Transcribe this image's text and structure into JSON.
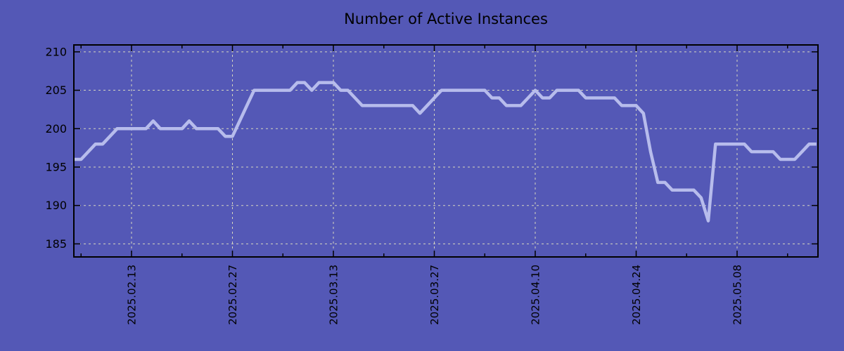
{
  "chart_data": {
    "type": "line",
    "title": "Number of Active Instances",
    "xlabel": "",
    "ylabel": "",
    "grid": true,
    "legend_position": "none",
    "ylim": [
      183.3,
      210.9
    ],
    "y_ticks": [
      185,
      190,
      195,
      200,
      205,
      210
    ],
    "x_tick_labels": [
      "2025.02.13",
      "2025.02.27",
      "2025.03.13",
      "2025.03.27",
      "2025.04.10",
      "2025.04.24",
      "2025.05.08"
    ],
    "x_minor_ticks": [
      "2025.02.06",
      "2025.02.20",
      "2025.03.06",
      "2025.03.20",
      "2025.04.03",
      "2025.04.17",
      "2025.05.01",
      "2025.05.15"
    ],
    "colors": {
      "background": "#5458b6",
      "line": "#b7bcec",
      "grid": "#d6d6c0",
      "axis": "#000000",
      "text": "#000000"
    },
    "x": [
      "2025.02.05",
      "2025.02.06",
      "2025.02.07",
      "2025.02.08",
      "2025.02.09",
      "2025.02.10",
      "2025.02.11",
      "2025.02.12",
      "2025.02.13",
      "2025.02.14",
      "2025.02.15",
      "2025.02.16",
      "2025.02.17",
      "2025.02.18",
      "2025.02.19",
      "2025.02.20",
      "2025.02.21",
      "2025.02.22",
      "2025.02.23",
      "2025.02.24",
      "2025.02.25",
      "2025.02.26",
      "2025.02.27",
      "2025.02.28",
      "2025.03.01",
      "2025.03.02",
      "2025.03.03",
      "2025.03.04",
      "2025.03.05",
      "2025.03.06",
      "2025.03.07",
      "2025.03.08",
      "2025.03.09",
      "2025.03.10",
      "2025.03.11",
      "2025.03.12",
      "2025.03.13",
      "2025.03.14",
      "2025.03.15",
      "2025.03.16",
      "2025.03.17",
      "2025.03.18",
      "2025.03.19",
      "2025.03.20",
      "2025.03.21",
      "2025.03.22",
      "2025.03.23",
      "2025.03.24",
      "2025.03.25",
      "2025.03.26",
      "2025.03.27",
      "2025.03.28",
      "2025.03.29",
      "2025.03.30",
      "2025.03.31",
      "2025.04.01",
      "2025.04.02",
      "2025.04.03",
      "2025.04.04",
      "2025.04.05",
      "2025.04.06",
      "2025.04.07",
      "2025.04.08",
      "2025.04.09",
      "2025.04.10",
      "2025.04.11",
      "2025.04.12",
      "2025.04.13",
      "2025.04.14",
      "2025.04.15",
      "2025.04.16",
      "2025.04.17",
      "2025.04.18",
      "2025.04.19",
      "2025.04.20",
      "2025.04.21",
      "2025.04.22",
      "2025.04.23",
      "2025.04.24",
      "2025.04.25",
      "2025.04.26",
      "2025.04.27",
      "2025.04.28",
      "2025.04.29",
      "2025.04.30",
      "2025.05.01",
      "2025.05.02",
      "2025.05.03",
      "2025.05.04",
      "2025.05.05",
      "2025.05.06",
      "2025.05.07",
      "2025.05.08",
      "2025.05.09",
      "2025.05.10",
      "2025.05.11",
      "2025.05.12",
      "2025.05.13",
      "2025.05.14",
      "2025.05.15",
      "2025.05.16",
      "2025.05.17",
      "2025.05.18",
      "2025.05.19"
    ],
    "values": [
      196,
      196,
      197,
      198,
      198,
      199,
      200,
      200,
      200,
      200,
      200,
      201,
      200,
      200,
      200,
      200,
      201,
      200,
      200,
      200,
      200,
      199,
      199,
      201,
      203,
      205,
      205,
      205,
      205,
      205,
      205,
      206,
      206,
      205,
      206,
      206,
      206,
      205,
      205,
      204,
      203,
      203,
      203,
      203,
      203,
      203,
      203,
      203,
      202,
      203,
      204,
      205,
      205,
      205,
      205,
      205,
      205,
      205,
      204,
      204,
      203,
      203,
      203,
      204,
      205,
      204,
      204,
      205,
      205,
      205,
      205,
      204,
      204,
      204,
      204,
      204,
      203,
      203,
      203,
      202,
      197,
      193,
      193,
      192,
      192,
      192,
      192,
      191,
      188,
      198,
      198,
      198,
      198,
      198,
      197,
      197,
      197,
      197,
      196,
      196,
      196,
      197,
      198,
      198
    ]
  }
}
